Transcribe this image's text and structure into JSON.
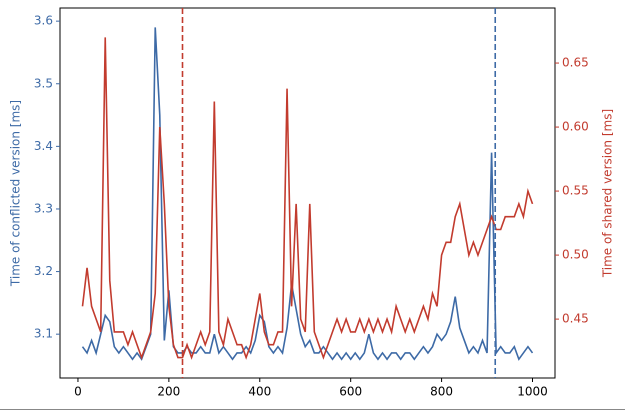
{
  "chart_data": {
    "type": "line",
    "ylabel": "Time of conflicted version [ms]",
    "y2label": "Time of shared version [ms]",
    "x": [
      10,
      20,
      30,
      40,
      50,
      60,
      70,
      80,
      90,
      100,
      110,
      120,
      130,
      140,
      150,
      160,
      170,
      180,
      190,
      200,
      210,
      220,
      230,
      240,
      250,
      260,
      270,
      280,
      290,
      300,
      310,
      320,
      330,
      340,
      350,
      360,
      370,
      380,
      390,
      400,
      410,
      420,
      430,
      440,
      450,
      460,
      470,
      480,
      490,
      500,
      510,
      520,
      530,
      540,
      550,
      560,
      570,
      580,
      590,
      600,
      610,
      620,
      630,
      640,
      650,
      660,
      670,
      680,
      690,
      700,
      710,
      720,
      730,
      740,
      750,
      760,
      770,
      780,
      790,
      800,
      810,
      820,
      830,
      840,
      850,
      860,
      870,
      880,
      890,
      900,
      910,
      920,
      930,
      940,
      950,
      960,
      970,
      980,
      990,
      1000
    ],
    "series": [
      {
        "color": "#3d6aa6",
        "axis": "y",
        "values": [
          3.08,
          3.07,
          3.09,
          3.07,
          3.1,
          3.13,
          3.12,
          3.08,
          3.07,
          3.08,
          3.07,
          3.06,
          3.07,
          3.06,
          3.08,
          3.1,
          3.59,
          3.45,
          3.09,
          3.17,
          3.08,
          3.07,
          3.07,
          3.08,
          3.07,
          3.07,
          3.08,
          3.07,
          3.07,
          3.1,
          3.07,
          3.08,
          3.07,
          3.06,
          3.07,
          3.07,
          3.08,
          3.07,
          3.09,
          3.13,
          3.12,
          3.08,
          3.07,
          3.08,
          3.07,
          3.11,
          3.18,
          3.14,
          3.1,
          3.08,
          3.09,
          3.07,
          3.07,
          3.08,
          3.07,
          3.06,
          3.07,
          3.06,
          3.07,
          3.06,
          3.07,
          3.06,
          3.07,
          3.1,
          3.07,
          3.06,
          3.07,
          3.06,
          3.07,
          3.07,
          3.06,
          3.07,
          3.07,
          3.06,
          3.07,
          3.08,
          3.07,
          3.08,
          3.1,
          3.09,
          3.1,
          3.12,
          3.16,
          3.11,
          3.09,
          3.07,
          3.08,
          3.07,
          3.09,
          3.07,
          3.39,
          3.07,
          3.08,
          3.07,
          3.07,
          3.08,
          3.06,
          3.07,
          3.08,
          3.07
        ]
      },
      {
        "color": "#c23b2e",
        "axis": "y2",
        "values": [
          0.46,
          0.49,
          0.46,
          0.45,
          0.44,
          0.67,
          0.48,
          0.44,
          0.44,
          0.44,
          0.43,
          0.44,
          0.43,
          0.42,
          0.43,
          0.44,
          0.47,
          0.6,
          0.54,
          0.46,
          0.43,
          0.42,
          0.42,
          0.43,
          0.42,
          0.43,
          0.44,
          0.43,
          0.44,
          0.62,
          0.44,
          0.43,
          0.45,
          0.44,
          0.43,
          0.43,
          0.42,
          0.43,
          0.45,
          0.47,
          0.44,
          0.43,
          0.43,
          0.44,
          0.44,
          0.63,
          0.46,
          0.54,
          0.45,
          0.44,
          0.54,
          0.44,
          0.43,
          0.42,
          0.43,
          0.44,
          0.45,
          0.44,
          0.45,
          0.44,
          0.44,
          0.45,
          0.44,
          0.45,
          0.44,
          0.45,
          0.44,
          0.45,
          0.44,
          0.46,
          0.45,
          0.44,
          0.45,
          0.44,
          0.45,
          0.46,
          0.45,
          0.47,
          0.46,
          0.5,
          0.51,
          0.51,
          0.53,
          0.54,
          0.52,
          0.5,
          0.51,
          0.5,
          0.51,
          0.52,
          0.53,
          0.52,
          0.52,
          0.53,
          0.53,
          0.53,
          0.54,
          0.53,
          0.55,
          0.54
        ]
      }
    ],
    "vlines": [
      {
        "x": 230,
        "color": "#c23b2e"
      },
      {
        "x": 918,
        "color": "#3d6aa6"
      }
    ],
    "xlim": [
      -39.5,
      1049.5
    ],
    "xticks": [
      0,
      200,
      400,
      600,
      800,
      1000
    ],
    "ylim": [
      3.03,
      3.621
    ],
    "yticks": [
      3.1,
      3.2,
      3.3,
      3.4,
      3.5,
      3.6
    ],
    "y2lim": [
      0.404,
      0.693
    ],
    "y2ticks": [
      0.45,
      {
        "value": 0.5,
        "label": "0.50"
      },
      0.55,
      {
        "value": 0.6,
        "label": "0.60"
      },
      0.65
    ]
  }
}
